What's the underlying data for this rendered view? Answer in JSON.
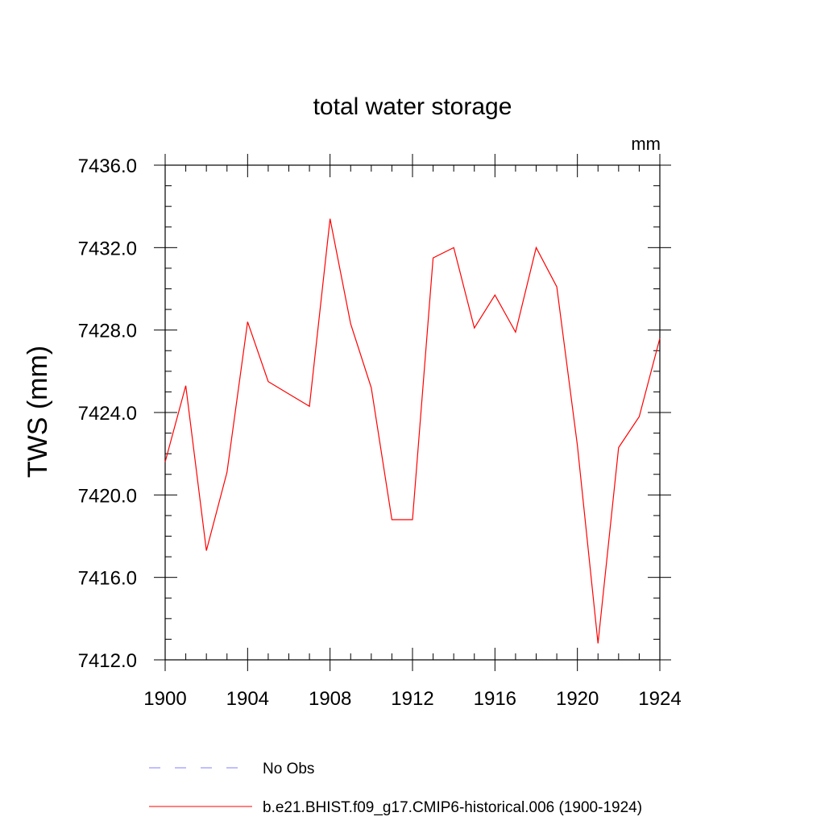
{
  "chart_data": {
    "type": "line",
    "title": "total water storage",
    "units_label": "mm",
    "ylabel": "TWS  (mm)",
    "xlabel": "",
    "xlim": [
      1900,
      1924
    ],
    "ylim": [
      7412.0,
      7436.0
    ],
    "xticks": [
      1900,
      1904,
      1908,
      1912,
      1916,
      1920,
      1924
    ],
    "yticks": [
      7412.0,
      7416.0,
      7420.0,
      7424.0,
      7428.0,
      7432.0,
      7436.0
    ],
    "ytick_labels": [
      "7412.0",
      "7416.0",
      "7420.0",
      "7424.0",
      "7428.0",
      "7432.0",
      "7436.0"
    ],
    "grid": false,
    "legend_position": "bottom",
    "series": [
      {
        "name": "b.e21.BHIST.f09_g17.CMIP6-historical.006 (1900-1924)",
        "color": "#ff0000",
        "style": "solid",
        "x": [
          1900,
          1901,
          1902,
          1903,
          1904,
          1905,
          1906,
          1907,
          1908,
          1909,
          1910,
          1911,
          1912,
          1913,
          1914,
          1915,
          1916,
          1917,
          1918,
          1919,
          1920,
          1921,
          1922,
          1923,
          1924
        ],
        "y": [
          7421.6,
          7425.3,
          7417.3,
          7421.1,
          7428.4,
          7425.5,
          7424.9,
          7424.3,
          7433.4,
          7428.3,
          7425.2,
          7418.8,
          7418.8,
          7431.5,
          7432.0,
          7428.1,
          7429.7,
          7427.9,
          7432.0,
          7430.1,
          7422.4,
          7412.8,
          7422.3,
          7423.8,
          7427.6
        ]
      }
    ],
    "legend": [
      {
        "label": "No Obs",
        "color": "#8080ff",
        "style": "dashed"
      },
      {
        "label": "b.e21.BHIST.f09_g17.CMIP6-historical.006 (1900-1924)",
        "color": "#ff0000",
        "style": "solid"
      }
    ]
  }
}
